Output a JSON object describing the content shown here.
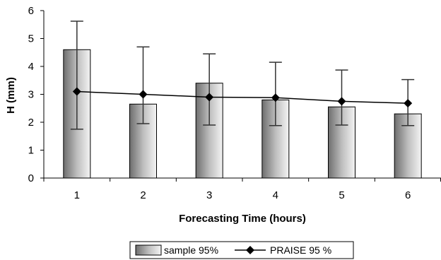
{
  "chart_data": {
    "type": "bar",
    "title": "",
    "xlabel": "Forecasting Time (hours)",
    "ylabel": "H (mm)",
    "ylim": [
      0,
      6
    ],
    "yticks": [
      "0",
      "1",
      "2",
      "3",
      "4",
      "5",
      "6"
    ],
    "categories": [
      "1",
      "2",
      "3",
      "4",
      "5",
      "6"
    ],
    "grid": false,
    "legend": "bottom",
    "series": [
      {
        "name": "sample 95%",
        "kind": "bar",
        "values": [
          4.6,
          2.65,
          3.4,
          2.8,
          2.55,
          2.3
        ],
        "error_low": [
          1.75,
          1.95,
          1.9,
          1.88,
          1.9,
          1.88
        ],
        "error_high": [
          5.62,
          4.7,
          4.45,
          4.15,
          3.87,
          3.53
        ]
      },
      {
        "name": "PRAISE 95 %",
        "kind": "line",
        "marker": "diamond",
        "values": [
          3.1,
          3.0,
          2.9,
          2.88,
          2.75,
          2.68
        ]
      }
    ]
  }
}
